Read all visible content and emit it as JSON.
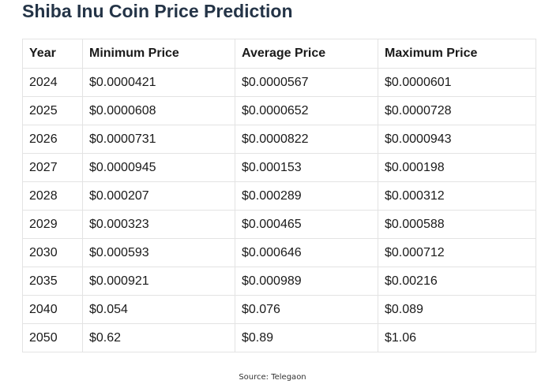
{
  "title": "Shiba Inu Coin Price Prediction",
  "table": {
    "headers": [
      "Year",
      "Minimum Price",
      "Average Price",
      "Maximum Price"
    ],
    "rows": [
      [
        "2024",
        "$0.0000421",
        "$0.0000567",
        "$0.0000601"
      ],
      [
        "2025",
        "$0.0000608",
        "$0.0000652",
        "$0.0000728"
      ],
      [
        "2026",
        "$0.0000731",
        "$0.0000822",
        "$0.0000943"
      ],
      [
        "2027",
        "$0.0000945",
        "$0.000153",
        "$0.000198"
      ],
      [
        "2028",
        "$0.000207",
        "$0.000289",
        "$0.000312"
      ],
      [
        "2029",
        "$0.000323",
        "$0.000465",
        "$0.000588"
      ],
      [
        "2030",
        "$0.000593",
        "$0.000646",
        "$0.000712"
      ],
      [
        "2035",
        "$0.000921",
        "$0.000989",
        "$0.00216"
      ],
      [
        "2040",
        "$0.054",
        "$0.076",
        "$0.089"
      ],
      [
        "2050",
        "$0.62",
        "$0.89",
        "$1.06"
      ]
    ]
  },
  "source": "Source: Telegaon",
  "colors": {
    "title": "#243447",
    "text": "#1a1a1a",
    "border": "#e3e3e3"
  }
}
